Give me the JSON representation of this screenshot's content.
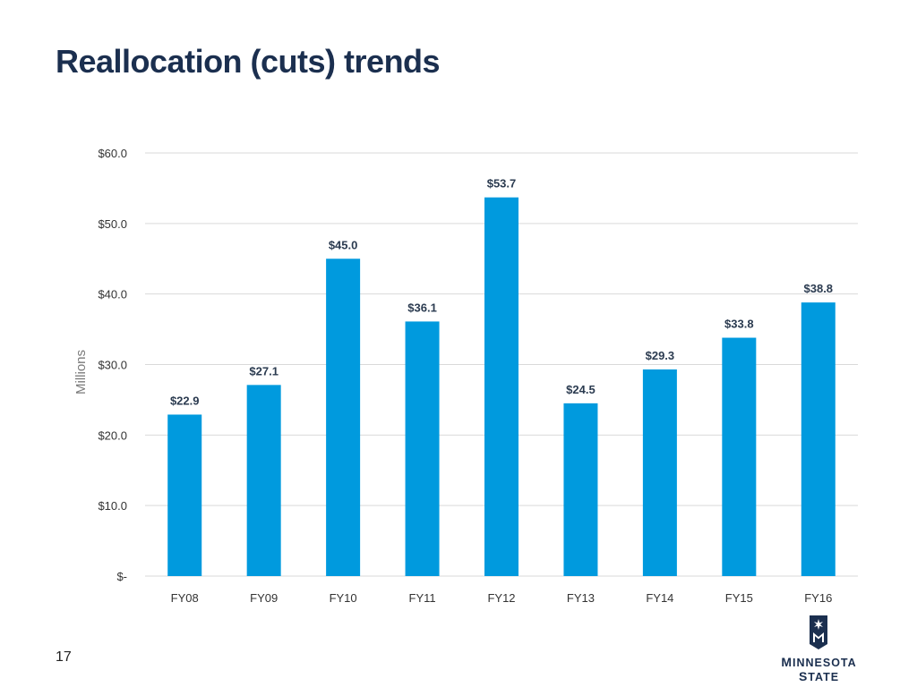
{
  "page": {
    "title": "Reallocation (cuts) trends",
    "page_number": "17",
    "logo_text": "Minnesota State"
  },
  "colors": {
    "bar": "#009ADE",
    "title": "#1b2f4f",
    "grid": "#d9d9d9"
  },
  "chart_data": {
    "type": "bar",
    "title": "",
    "xlabel": "",
    "ylabel": "Millions",
    "categories": [
      "FY08",
      "FY09",
      "FY10",
      "FY11",
      "FY12",
      "FY13",
      "FY14",
      "FY15",
      "FY16"
    ],
    "values": [
      22.9,
      27.1,
      45.0,
      36.1,
      53.7,
      24.5,
      29.3,
      33.8,
      38.8
    ],
    "data_labels": [
      "$22.9",
      "$27.1",
      "$45.0",
      "$36.1",
      "$53.7",
      "$24.5",
      "$29.3",
      "$33.8",
      "$38.8"
    ],
    "ylim": [
      0,
      60
    ],
    "yticks": [
      0,
      10,
      20,
      30,
      40,
      50,
      60
    ],
    "ytick_labels": [
      "$-",
      "$10.0",
      "$20.0",
      "$30.0",
      "$40.0",
      "$50.0",
      "$60.0"
    ],
    "grid": true,
    "legend": "none"
  }
}
